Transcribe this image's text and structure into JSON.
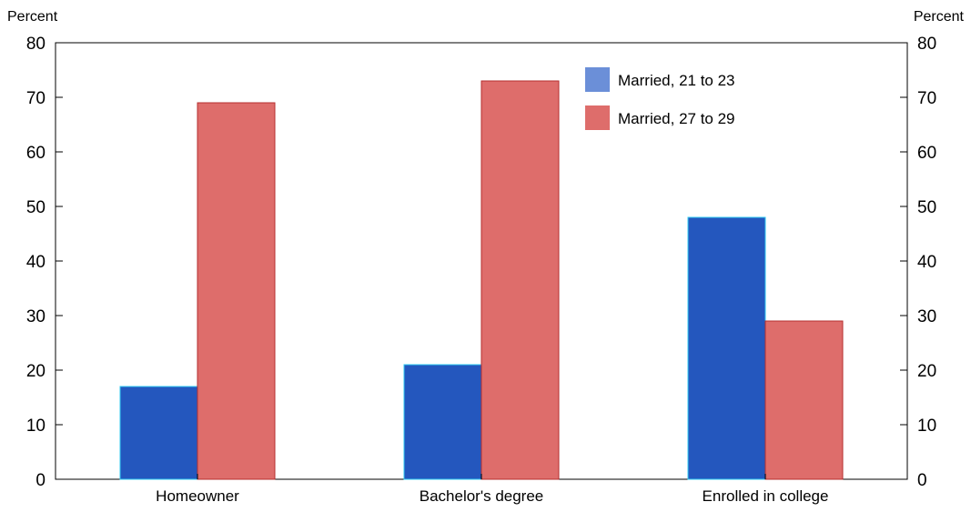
{
  "chart_data": {
    "type": "bar",
    "categories": [
      "Homeowner",
      "Bachelor's degree",
      "Enrolled in college"
    ],
    "series": [
      {
        "name": "Married, 21 to 23",
        "color": "#2457BE",
        "legend_color": "#6B8FD8",
        "edge_color": "#2EC8F0",
        "values": [
          17,
          21,
          48
        ]
      },
      {
        "name": "Married, 27 to 29",
        "color": "#DE6D6B",
        "legend_color": "#DE6D6B",
        "edge_color": "#B52F2F",
        "values": [
          69,
          73,
          29
        ]
      }
    ],
    "ylabel_left": "Percent",
    "ylabel_right": "Percent",
    "ylim": [
      0,
      80
    ],
    "yticks": [
      0,
      10,
      20,
      30,
      40,
      50,
      60,
      70,
      80
    ],
    "grid": false,
    "legend_position": "top-right"
  }
}
